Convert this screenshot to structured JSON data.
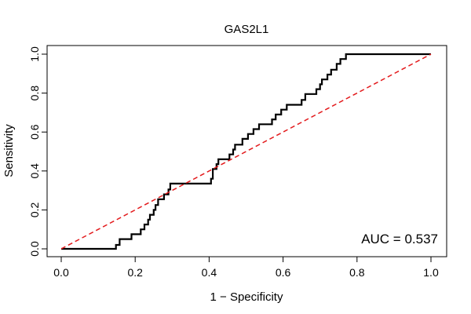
{
  "chart_data": {
    "type": "line",
    "title": "GAS2L1",
    "xlabel": "1 − Specificity",
    "ylabel": "Sensitivity",
    "xlim": [
      0,
      1
    ],
    "ylim": [
      0,
      1
    ],
    "x_ticks": [
      0.0,
      0.2,
      0.4,
      0.6,
      0.8,
      1.0
    ],
    "y_ticks": [
      0.0,
      0.2,
      0.4,
      0.6,
      0.8,
      1.0
    ],
    "x_tick_labels": [
      "0.0",
      "0.2",
      "0.4",
      "0.6",
      "0.8",
      "1.0"
    ],
    "y_tick_labels": [
      "0.0",
      "0.2",
      "0.4",
      "0.6",
      "0.8",
      "1.0"
    ],
    "grid": false,
    "annotation": "AUC = 0.537",
    "series": [
      {
        "style": "solid",
        "color": "#000000",
        "points": [
          [
            0.0,
            0.0
          ],
          [
            0.148,
            0.0
          ],
          [
            0.148,
            0.02
          ],
          [
            0.158,
            0.02
          ],
          [
            0.158,
            0.05
          ],
          [
            0.19,
            0.05
          ],
          [
            0.19,
            0.075
          ],
          [
            0.215,
            0.075
          ],
          [
            0.215,
            0.1
          ],
          [
            0.225,
            0.1
          ],
          [
            0.225,
            0.125
          ],
          [
            0.235,
            0.125
          ],
          [
            0.235,
            0.15
          ],
          [
            0.24,
            0.15
          ],
          [
            0.24,
            0.175
          ],
          [
            0.25,
            0.175
          ],
          [
            0.25,
            0.2
          ],
          [
            0.255,
            0.2
          ],
          [
            0.255,
            0.225
          ],
          [
            0.262,
            0.225
          ],
          [
            0.262,
            0.255
          ],
          [
            0.278,
            0.255
          ],
          [
            0.278,
            0.28
          ],
          [
            0.29,
            0.28
          ],
          [
            0.29,
            0.305
          ],
          [
            0.295,
            0.305
          ],
          [
            0.295,
            0.335
          ],
          [
            0.405,
            0.335
          ],
          [
            0.405,
            0.36
          ],
          [
            0.41,
            0.36
          ],
          [
            0.41,
            0.41
          ],
          [
            0.42,
            0.41
          ],
          [
            0.42,
            0.435
          ],
          [
            0.425,
            0.435
          ],
          [
            0.425,
            0.46
          ],
          [
            0.455,
            0.46
          ],
          [
            0.455,
            0.485
          ],
          [
            0.465,
            0.485
          ],
          [
            0.465,
            0.51
          ],
          [
            0.47,
            0.51
          ],
          [
            0.47,
            0.535
          ],
          [
            0.49,
            0.535
          ],
          [
            0.49,
            0.565
          ],
          [
            0.505,
            0.565
          ],
          [
            0.505,
            0.59
          ],
          [
            0.52,
            0.59
          ],
          [
            0.52,
            0.615
          ],
          [
            0.535,
            0.615
          ],
          [
            0.535,
            0.64
          ],
          [
            0.57,
            0.64
          ],
          [
            0.57,
            0.665
          ],
          [
            0.58,
            0.665
          ],
          [
            0.58,
            0.69
          ],
          [
            0.595,
            0.69
          ],
          [
            0.595,
            0.715
          ],
          [
            0.61,
            0.715
          ],
          [
            0.61,
            0.74
          ],
          [
            0.65,
            0.74
          ],
          [
            0.65,
            0.765
          ],
          [
            0.66,
            0.765
          ],
          [
            0.66,
            0.795
          ],
          [
            0.69,
            0.795
          ],
          [
            0.69,
            0.82
          ],
          [
            0.7,
            0.82
          ],
          [
            0.7,
            0.845
          ],
          [
            0.705,
            0.845
          ],
          [
            0.705,
            0.87
          ],
          [
            0.72,
            0.87
          ],
          [
            0.72,
            0.895
          ],
          [
            0.73,
            0.895
          ],
          [
            0.73,
            0.92
          ],
          [
            0.745,
            0.92
          ],
          [
            0.745,
            0.95
          ],
          [
            0.755,
            0.95
          ],
          [
            0.755,
            0.975
          ],
          [
            0.77,
            0.975
          ],
          [
            0.77,
            1.0
          ],
          [
            1.0,
            1.0
          ]
        ]
      },
      {
        "style": "dashed",
        "color": "#e31a1c",
        "points": [
          [
            0.0,
            0.0
          ],
          [
            1.0,
            1.0
          ]
        ]
      }
    ]
  }
}
